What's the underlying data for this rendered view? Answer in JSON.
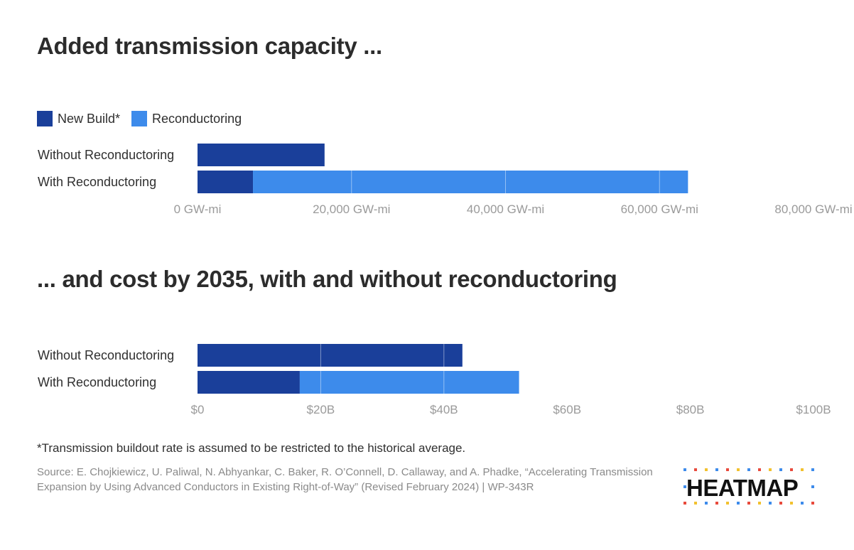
{
  "titles": {
    "capacity": "Added transmission capacity ...",
    "cost": "... and cost by 2035, with and without reconductoring"
  },
  "legend": [
    {
      "label": "New Build*",
      "color": "#1a3f9a"
    },
    {
      "label": "Reconductoring",
      "color": "#3d8beb"
    }
  ],
  "chart_data": [
    {
      "type": "bar",
      "orientation": "horizontal",
      "stacked": true,
      "title": "Added transmission capacity ...",
      "categories": [
        "Without Reconductoring",
        "With Reconductoring"
      ],
      "series": [
        {
          "name": "New Build*",
          "color": "#1a3f9a",
          "values": [
            16500,
            7200
          ]
        },
        {
          "name": "Reconductoring",
          "color": "#3d8beb",
          "values": [
            0,
            56500
          ]
        }
      ],
      "xlim": [
        0,
        80000
      ],
      "tick_values": [
        0,
        20000,
        40000,
        60000,
        80000
      ],
      "tick_labels": [
        "0 GW-mi",
        "20,000 GW-mi",
        "40,000 GW-mi",
        "60,000 GW-mi",
        "80,000 GW-mi"
      ],
      "grid": true,
      "legend_position": "top-left"
    },
    {
      "type": "bar",
      "orientation": "horizontal",
      "stacked": true,
      "title": "... and cost by 2035, with and without reconductoring",
      "categories": [
        "Without Reconductoring",
        "With Reconductoring"
      ],
      "series": [
        {
          "name": "New Build*",
          "color": "#1a3f9a",
          "values": [
            43,
            16.6
          ]
        },
        {
          "name": "Reconductoring",
          "color": "#3d8beb",
          "values": [
            0,
            35.6
          ]
        }
      ],
      "xlim": [
        0,
        100
      ],
      "tick_values": [
        0,
        20,
        40,
        60,
        80,
        100
      ],
      "tick_labels": [
        "$0",
        "$20B",
        "$40B",
        "$60B",
        "$80B",
        "$100B"
      ],
      "grid": true
    }
  ],
  "footnote": "*Transmission buildout rate is assumed to be restricted to the historical average.",
  "source": "Source: E. Chojkiewicz, U. Paliwal, N. Abhyankar, C. Baker, R. O’Connell, D. Callaway, and A. Phadke, “Accelerating Transmission Expansion by Using Advanced Conductors in Existing Right-of-Way” (Revised February 2024) | WP-343R",
  "logo": {
    "text": "HEATMAP",
    "dot_colors": [
      "#3d8beb",
      "#e84a3c",
      "#f2c12e"
    ]
  }
}
